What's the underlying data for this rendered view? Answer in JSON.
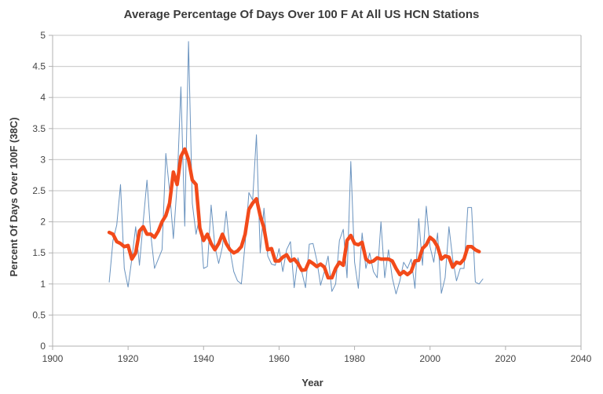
{
  "chart_data": {
    "type": "line",
    "title": "Average Percentage Of Days Over 100 F At All US HCN Stations",
    "xlabel": "Year",
    "ylabel": "Percent Of Days Over 100F (38C)",
    "xlim": [
      1900,
      2040
    ],
    "ylim": [
      0,
      5
    ],
    "xticks": [
      "1900",
      "1920",
      "1940",
      "1960",
      "1980",
      "2000",
      "2020",
      "2040"
    ],
    "yticks": [
      "0",
      "0.5",
      "1",
      "1.5",
      "2",
      "2.5",
      "3",
      "3.5",
      "4",
      "4.5",
      "5"
    ],
    "grid": "horizontal",
    "legend": "none",
    "colors": {
      "annual": "#6a93bf",
      "smoothed": "#f24a1a",
      "grid": "#d0d0d0",
      "axis": "#b0b0b0"
    },
    "series": [
      {
        "name": "annual",
        "x_start": 1915,
        "values": [
          1.03,
          1.7,
          1.95,
          2.6,
          1.25,
          0.95,
          1.4,
          1.92,
          1.3,
          2.0,
          2.67,
          1.8,
          1.25,
          1.4,
          1.55,
          3.1,
          2.5,
          1.73,
          2.6,
          4.17,
          1.93,
          4.9,
          2.3,
          1.8,
          2.1,
          1.25,
          1.28,
          2.27,
          1.6,
          1.33,
          1.6,
          2.17,
          1.55,
          1.2,
          1.05,
          1.0,
          1.65,
          2.47,
          2.35,
          3.4,
          1.5,
          2.22,
          1.45,
          1.32,
          1.3,
          1.57,
          1.2,
          1.55,
          1.68,
          0.94,
          1.42,
          1.2,
          0.94,
          1.64,
          1.65,
          1.38,
          0.98,
          1.2,
          1.45,
          0.88,
          1.0,
          1.7,
          1.88,
          1.1,
          2.97,
          1.35,
          0.93,
          1.82,
          1.25,
          1.5,
          1.2,
          1.1,
          2.0,
          1.1,
          1.55,
          1.1,
          0.84,
          1.05,
          1.35,
          1.25,
          1.4,
          0.93,
          2.05,
          1.3,
          2.25,
          1.6,
          1.35,
          1.82,
          0.85,
          1.1,
          1.92,
          1.4,
          1.05,
          1.25,
          1.25,
          2.23,
          2.23,
          1.03,
          1.0,
          1.08
        ]
      },
      {
        "name": "smoothed",
        "x_start": 1915,
        "values": [
          1.83,
          1.8,
          1.68,
          1.65,
          1.6,
          1.62,
          1.4,
          1.5,
          1.85,
          1.92,
          1.8,
          1.8,
          1.75,
          1.85,
          2.0,
          2.1,
          2.3,
          2.8,
          2.6,
          3.05,
          3.17,
          3.0,
          2.67,
          2.6,
          1.9,
          1.7,
          1.8,
          1.65,
          1.55,
          1.65,
          1.8,
          1.65,
          1.55,
          1.5,
          1.53,
          1.6,
          1.8,
          2.2,
          2.3,
          2.37,
          2.1,
          1.9,
          1.55,
          1.57,
          1.37,
          1.37,
          1.43,
          1.47,
          1.37,
          1.4,
          1.33,
          1.22,
          1.23,
          1.37,
          1.33,
          1.28,
          1.32,
          1.27,
          1.1,
          1.1,
          1.25,
          1.35,
          1.3,
          1.7,
          1.78,
          1.65,
          1.63,
          1.67,
          1.4,
          1.35,
          1.37,
          1.42,
          1.4,
          1.4,
          1.4,
          1.37,
          1.25,
          1.15,
          1.2,
          1.15,
          1.2,
          1.37,
          1.38,
          1.57,
          1.63,
          1.75,
          1.7,
          1.6,
          1.4,
          1.45,
          1.43,
          1.27,
          1.35,
          1.33,
          1.4,
          1.6,
          1.6,
          1.55,
          1.52
        ]
      }
    ]
  }
}
